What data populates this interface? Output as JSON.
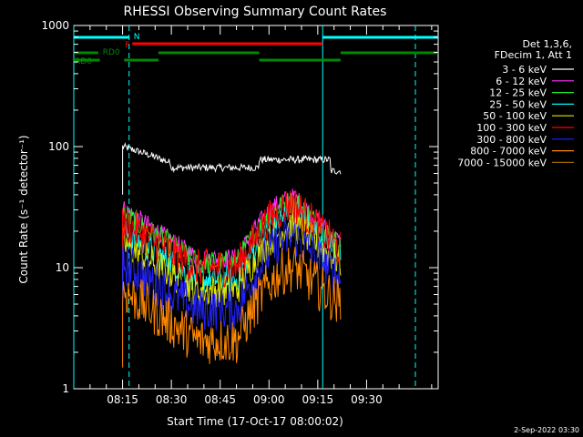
{
  "chart_data": {
    "type": "line",
    "title": "RHESSI Observing Summary Count Rates",
    "xlabel": "Start Time (17-Oct-17 08:00:02)",
    "ylabel": "Count Rate (s⁻¹ detector⁻¹)",
    "yscale": "log",
    "ylim": [
      1,
      1000
    ],
    "xlim_minutes": [
      0,
      112
    ],
    "x_ticks": [
      {
        "minute": 15,
        "label": "08:15"
      },
      {
        "minute": 30,
        "label": "08:30"
      },
      {
        "minute": 45,
        "label": "08:45"
      },
      {
        "minute": 60,
        "label": "09:00"
      },
      {
        "minute": 75,
        "label": "09:15"
      },
      {
        "minute": 90,
        "label": "09:30"
      }
    ],
    "y_ticks": [
      {
        "value": 1,
        "label": "1"
      },
      {
        "value": 10,
        "label": "10"
      },
      {
        "value": 100,
        "label": "100"
      },
      {
        "value": 1000,
        "label": "1000"
      }
    ],
    "legend_header": [
      "Det 1,3,6,",
      "FDecim 1, Att 1"
    ],
    "series": [
      {
        "name": "3 - 6 keV",
        "color": "#ffffff",
        "start": 100,
        "min": 65,
        "peak": 82,
        "end": 63
      },
      {
        "name": "6 - 12 keV",
        "color": "#ff33ff",
        "start": 31,
        "min": 12,
        "peak": 38,
        "end": 16
      },
      {
        "name": "12 - 25 keV",
        "color": "#22ee22",
        "start": 28,
        "min": 11,
        "peak": 35,
        "end": 15
      },
      {
        "name": "25 - 50 keV",
        "color": "#00ffff",
        "start": 20,
        "min": 8,
        "peak": 28,
        "end": 13
      },
      {
        "name": "50 - 100 keV",
        "color": "#e6e600",
        "start": 16,
        "min": 6.5,
        "peak": 22,
        "end": 11
      },
      {
        "name": "100 - 300 keV",
        "color": "#ff0000",
        "start": 24,
        "min": 10,
        "peak": 33,
        "end": 14
      },
      {
        "name": "300 - 800 keV",
        "color": "#2222ff",
        "start": 11,
        "min": 4.5,
        "peak": 18,
        "end": 8
      },
      {
        "name": "800 - 7000 keV",
        "color": "#ff8800",
        "start": 6.5,
        "min": 2.5,
        "peak": 10,
        "end": 5
      },
      {
        "name": "7000 - 15000 keV",
        "color": "#996600",
        "start": null,
        "min": null,
        "peak": null,
        "end": null
      }
    ],
    "flags": [
      {
        "label": "N",
        "color": "#00ffff",
        "row": 0,
        "segments": [
          [
            0,
            17
          ],
          [
            76.5,
            112
          ]
        ]
      },
      {
        "label": "F",
        "color": "#ff0000",
        "row": 1,
        "segments": [
          [
            18,
            76.5
          ]
        ]
      },
      {
        "label": "RD0",
        "color": "#008800",
        "row": 2,
        "segments": [
          [
            0,
            7.5
          ],
          [
            26,
            57
          ],
          [
            82,
            112
          ]
        ]
      },
      {
        "label": "RD6",
        "color": "#008800",
        "row": 3,
        "segments": [
          [
            0,
            8
          ],
          [
            15.5,
            26
          ],
          [
            57,
            82
          ]
        ]
      }
    ],
    "vlines": [
      {
        "minute": 0,
        "style": "solid"
      },
      {
        "minute": 17,
        "style": "dashed"
      },
      {
        "minute": 76.5,
        "style": "solid"
      },
      {
        "minute": 105,
        "style": "dashed"
      }
    ],
    "footer": "2-Sep-2022 03:30"
  }
}
